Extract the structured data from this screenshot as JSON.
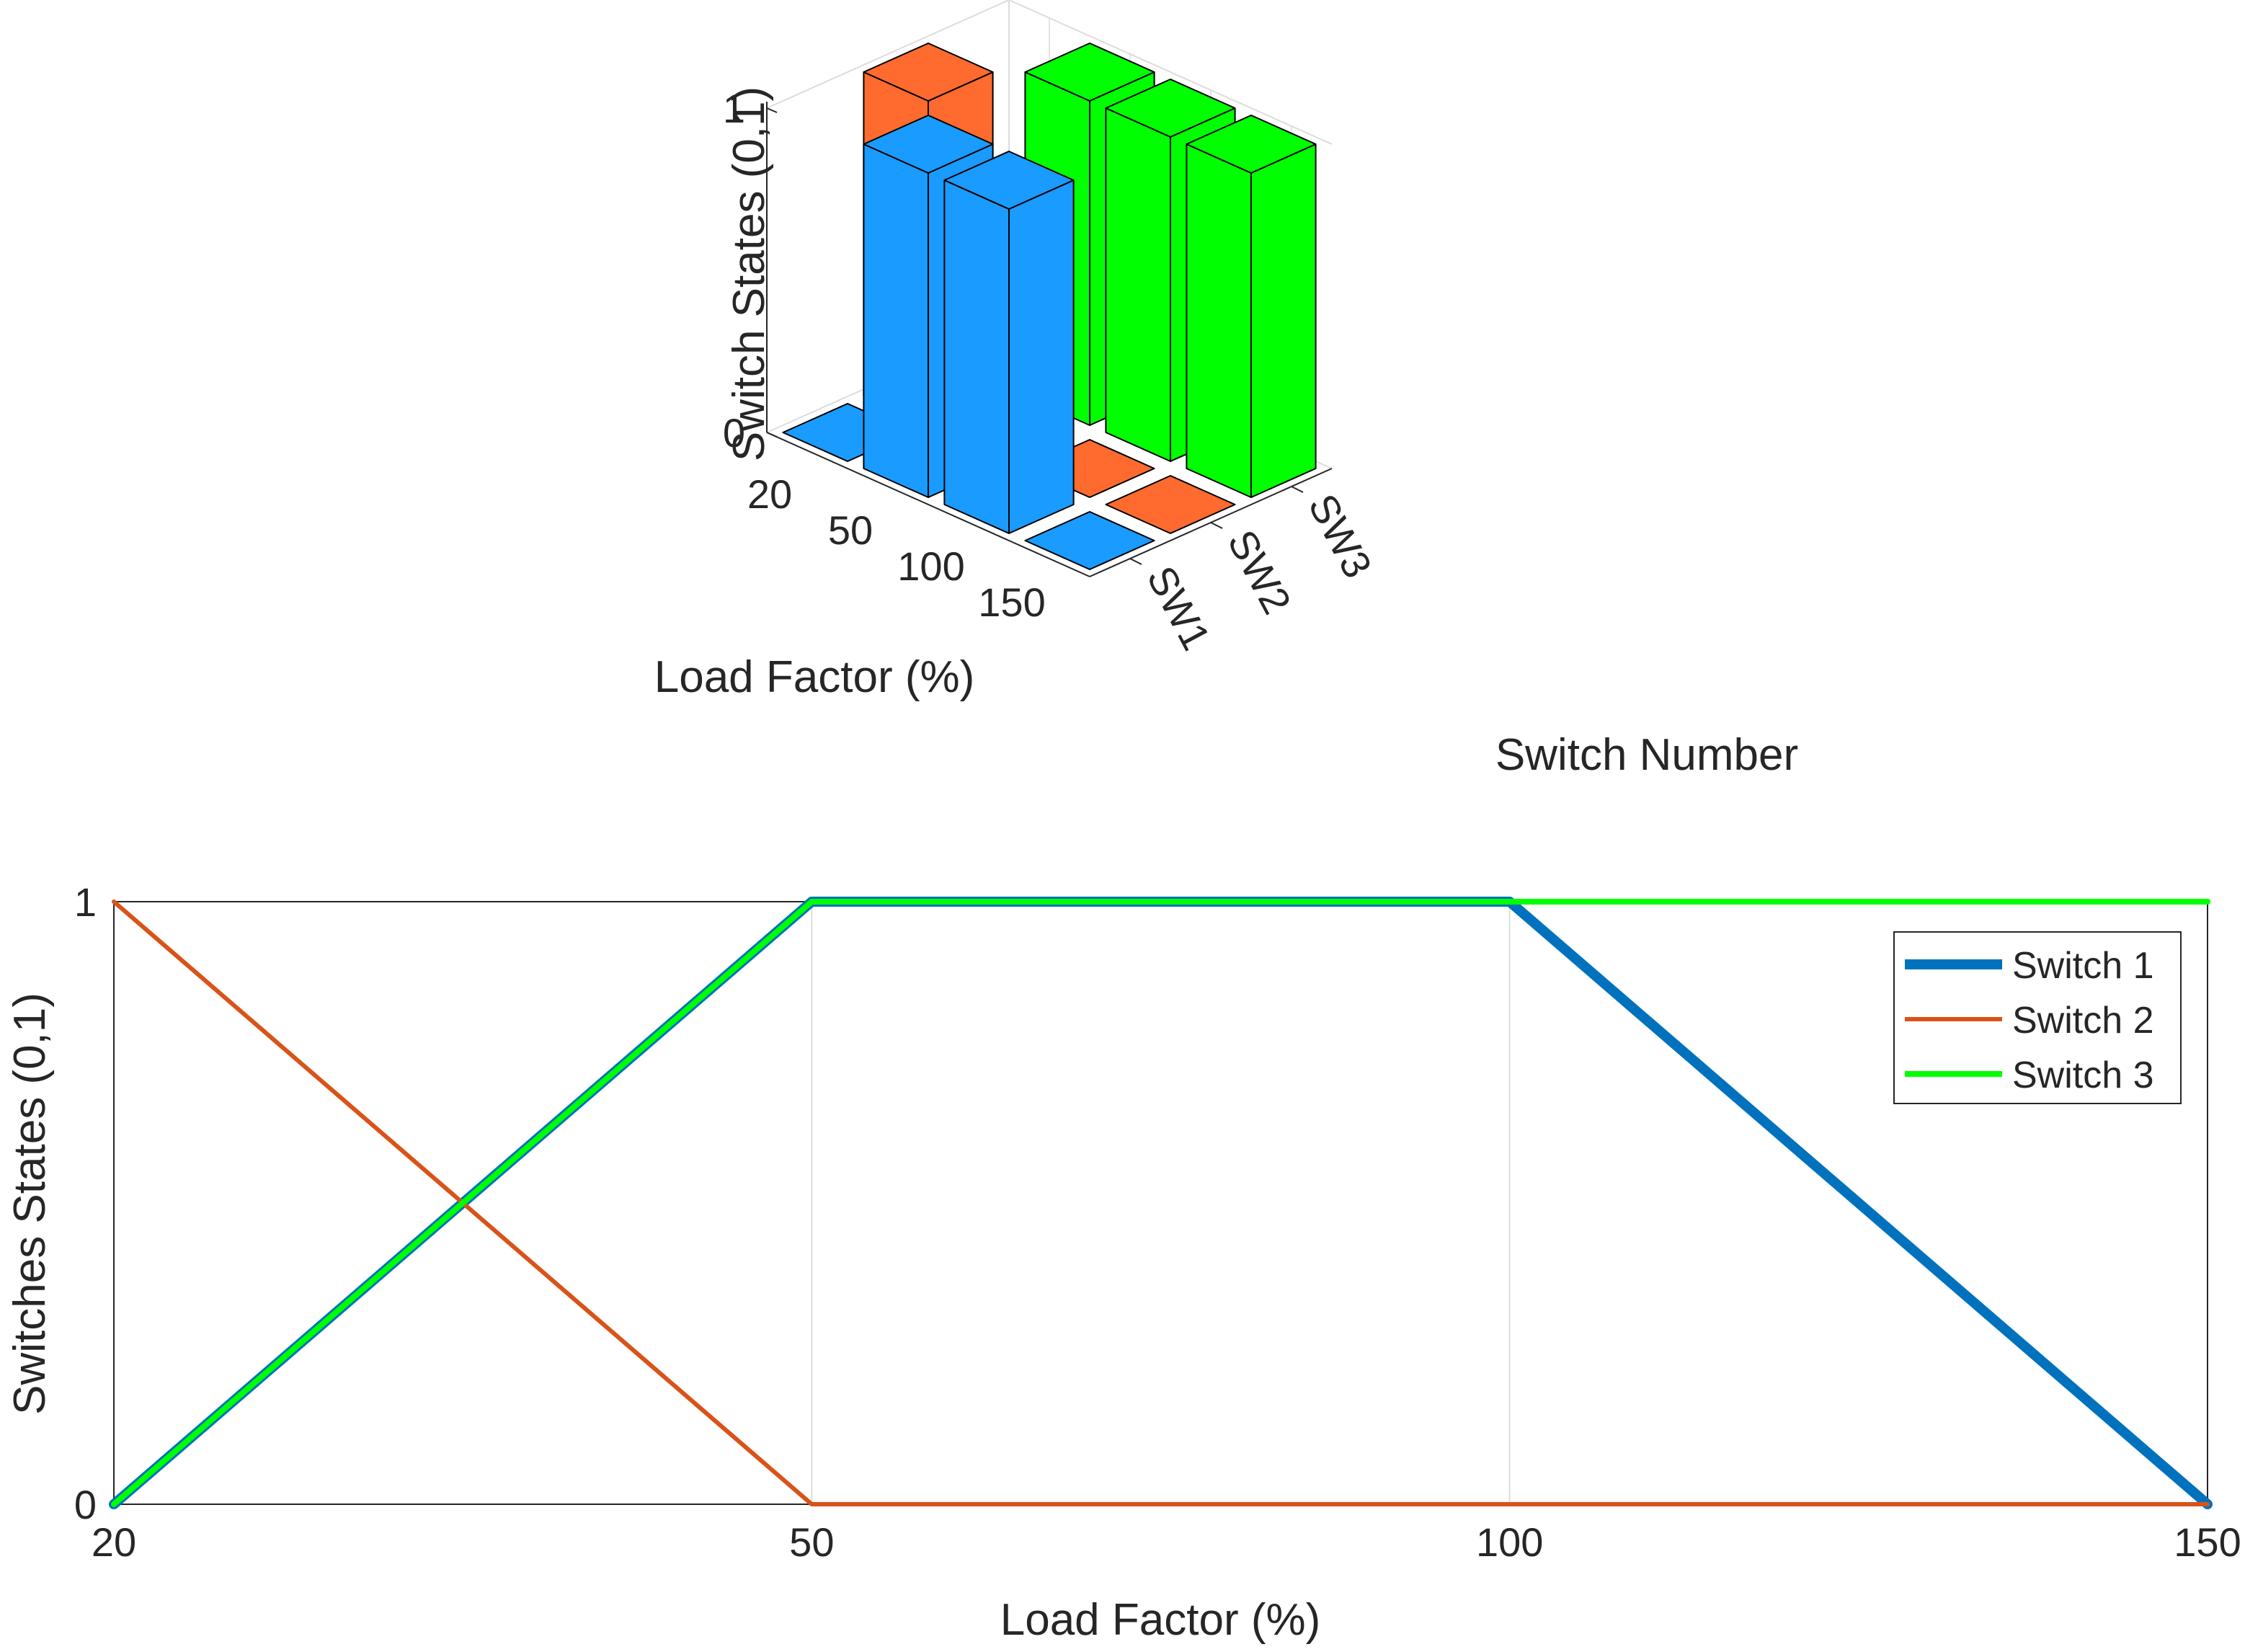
{
  "colors": {
    "bar_sw1": "#1a9bff",
    "bar_sw2": "#ff6a2e",
    "bar_sw3": "#00ff00",
    "line_switch1": "#0072bd",
    "line_switch2": "#d95319",
    "line_switch3": "#00ff00",
    "axis": "#262626",
    "grid": "#dcdcdc"
  },
  "chart_data": [
    {
      "type": "bar3d",
      "xlabel": "Load Factor (%)",
      "ylabel": "Switch Number",
      "zlabel": "Switch States (0,1)",
      "load_factor_ticks": [
        "20",
        "50",
        "100",
        "150"
      ],
      "switch_ticks": [
        "SW1",
        "SW2",
        "SW3"
      ],
      "z_ticks": [
        "0",
        "1"
      ],
      "zlim": [
        0,
        1
      ],
      "series": [
        {
          "name": "SW1",
          "values": [
            0,
            1,
            1,
            0
          ]
        },
        {
          "name": "SW2",
          "values": [
            1,
            0,
            0,
            0
          ]
        },
        {
          "name": "SW3",
          "values": [
            0,
            1,
            1,
            1
          ]
        }
      ]
    },
    {
      "type": "line",
      "xlabel": "Load Factor (%)",
      "ylabel": "Switches States (0,1)",
      "x": [
        20,
        50,
        100,
        150
      ],
      "x_ticks": [
        "20",
        "50",
        "100",
        "150"
      ],
      "y_ticks": [
        "0",
        "1"
      ],
      "ylim": [
        0,
        1
      ],
      "grid": true,
      "legend_position": "top-right",
      "series": [
        {
          "name": "Switch 1",
          "values": [
            0,
            1,
            1,
            0
          ]
        },
        {
          "name": "Switch 2",
          "values": [
            1,
            0,
            0,
            0
          ]
        },
        {
          "name": "Switch 3",
          "values": [
            0,
            1,
            1,
            1
          ]
        }
      ]
    }
  ]
}
